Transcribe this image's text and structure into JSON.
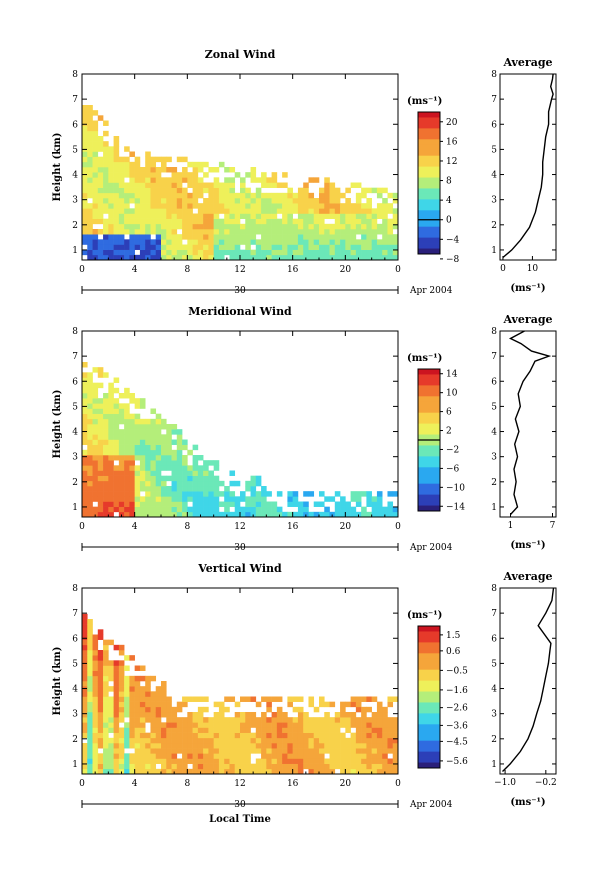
{
  "chart_data": [
    {
      "type": "heatmap",
      "title": "Zonal Wind",
      "xlabel": "",
      "ylabel": "Height (km)",
      "xlim": [
        0,
        24
      ],
      "ylim": [
        0.6,
        8
      ],
      "x_ticks": [
        "0",
        "4",
        "8",
        "12",
        "16",
        "20",
        "0"
      ],
      "y_ticks": [
        "1",
        "2",
        "3",
        "4",
        "5",
        "6",
        "7",
        "8"
      ],
      "date_day": "30",
      "date_month": "Apr 2004",
      "colorbar": {
        "unit": "(ms⁻¹)",
        "min": -7,
        "max": 22,
        "tick_values": [
          20,
          16,
          12,
          8,
          4,
          0,
          -4,
          -8
        ],
        "tick_labels": [
          "20",
          "16",
          "12",
          "8",
          "4",
          "0",
          "−4",
          "−8"
        ],
        "zero_line": 0
      },
      "profile": {
        "title": "Average",
        "xlabel": "(ms⁻¹)",
        "x_ticks": [
          0,
          10
        ],
        "x_tick_labels": [
          "0",
          "10"
        ],
        "xlim": [
          -1,
          18
        ],
        "points": [
          [
            0,
            0.7
          ],
          [
            3,
            1.0
          ],
          [
            6,
            1.4
          ],
          [
            9,
            1.9
          ],
          [
            11,
            2.5
          ],
          [
            12,
            3.0
          ],
          [
            13,
            3.5
          ],
          [
            13.5,
            4.0
          ],
          [
            13.5,
            4.5
          ],
          [
            14,
            5.0
          ],
          [
            14.5,
            5.5
          ],
          [
            15.5,
            6.0
          ],
          [
            15.5,
            6.5
          ],
          [
            16.5,
            7.0
          ],
          [
            17,
            7.2
          ],
          [
            16.2,
            7.5
          ],
          [
            16.8,
            7.8
          ],
          [
            17,
            8.0
          ]
        ]
      }
    },
    {
      "type": "heatmap",
      "title": "Meridional Wind",
      "xlabel": "",
      "ylabel": "Height (km)",
      "xlim": [
        0,
        24
      ],
      "ylim": [
        0.6,
        8
      ],
      "x_ticks": [
        "0",
        "4",
        "8",
        "12",
        "16",
        "20",
        "0"
      ],
      "y_ticks": [
        "1",
        "2",
        "3",
        "4",
        "5",
        "6",
        "7",
        "8"
      ],
      "date_day": "30",
      "date_month": "Apr 2004",
      "colorbar": {
        "unit": "(ms⁻¹)",
        "min": -15,
        "max": 15,
        "tick_values": [
          14,
          10,
          6,
          2,
          -2,
          -6,
          -10,
          -14
        ],
        "tick_labels": [
          "14",
          "10",
          "6",
          "2",
          "−2",
          "−6",
          "−10",
          "−14"
        ],
        "zero_line": 0
      },
      "profile": {
        "title": "Average",
        "xlabel": "(ms⁻¹)",
        "x_ticks": [
          1,
          7
        ],
        "x_tick_labels": [
          "1",
          "7"
        ],
        "xlim": [
          -0.5,
          7.5
        ],
        "points": [
          [
            1,
            0.7
          ],
          [
            2,
            1.0
          ],
          [
            1.5,
            1.5
          ],
          [
            1.8,
            2.0
          ],
          [
            1.5,
            2.5
          ],
          [
            2,
            3.0
          ],
          [
            1.6,
            3.5
          ],
          [
            2.2,
            4.0
          ],
          [
            1.7,
            4.5
          ],
          [
            2.4,
            5.0
          ],
          [
            2.1,
            5.5
          ],
          [
            2.8,
            6.0
          ],
          [
            3.8,
            6.4
          ],
          [
            4.5,
            6.8
          ],
          [
            6.5,
            7.0
          ],
          [
            4,
            7.2
          ],
          [
            2.5,
            7.5
          ],
          [
            1,
            7.7
          ],
          [
            3,
            8.0
          ]
        ]
      }
    },
    {
      "type": "heatmap",
      "title": "Vertical Wind",
      "xlabel": "Local Time",
      "ylabel": "Height (km)",
      "xlim": [
        0,
        24
      ],
      "ylim": [
        0.6,
        8
      ],
      "x_ticks": [
        "0",
        "4",
        "8",
        "12",
        "16",
        "20",
        "0"
      ],
      "y_ticks": [
        "1",
        "2",
        "3",
        "4",
        "5",
        "6",
        "7",
        "8"
      ],
      "date_day": "30",
      "date_month": "Apr 2004",
      "colorbar": {
        "unit": "(ms⁻¹)",
        "min": -6,
        "max": 2,
        "tick_values": [
          1.5,
          0.6,
          -0.5,
          -1.6,
          -2.6,
          -3.6,
          -4.5,
          -5.6
        ],
        "tick_labels": [
          "1.5",
          "0.6",
          "−0.5",
          "−1.6",
          "−2.6",
          "−3.6",
          "−4.5",
          "−5.6"
        ],
        "zero_line": null
      },
      "profile": {
        "title": "Average",
        "xlabel": "(ms⁻¹)",
        "x_ticks": [
          -1.0,
          -0.2
        ],
        "x_tick_labels": [
          "−1.0",
          "−0.2"
        ],
        "xlim": [
          -1.1,
          0.0
        ],
        "points": [
          [
            -1.05,
            0.7
          ],
          [
            -0.9,
            1.0
          ],
          [
            -0.7,
            1.5
          ],
          [
            -0.55,
            2.0
          ],
          [
            -0.45,
            2.5
          ],
          [
            -0.38,
            3.0
          ],
          [
            -0.3,
            3.5
          ],
          [
            -0.25,
            4.0
          ],
          [
            -0.2,
            4.5
          ],
          [
            -0.15,
            5.0
          ],
          [
            -0.12,
            5.5
          ],
          [
            -0.1,
            5.8
          ],
          [
            -0.35,
            6.5
          ],
          [
            -0.2,
            7.0
          ],
          [
            -0.08,
            7.5
          ],
          [
            -0.05,
            8.0
          ]
        ]
      }
    }
  ]
}
